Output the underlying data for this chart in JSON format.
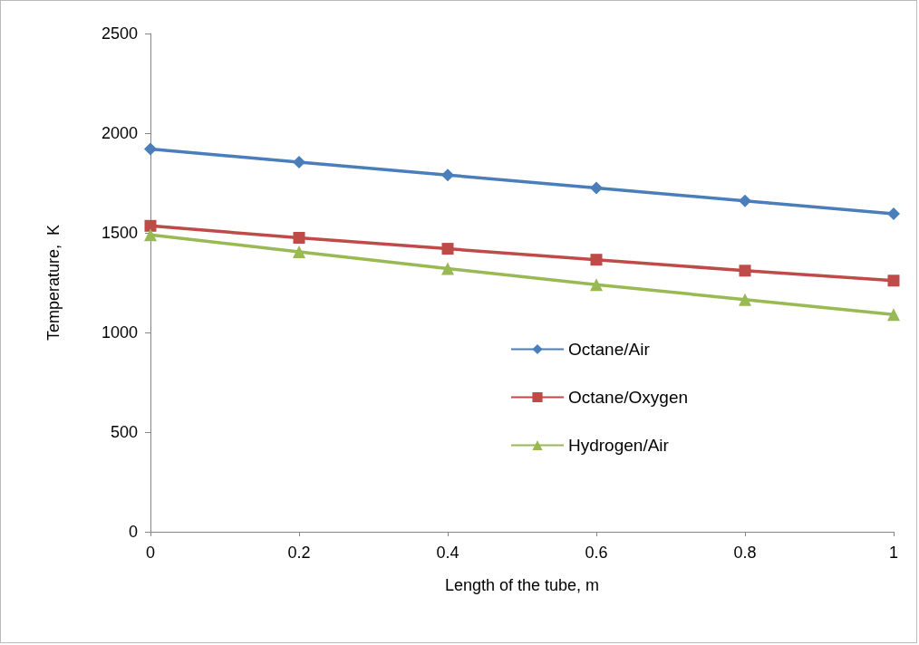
{
  "chart_data": {
    "type": "line",
    "xlabel": "Length of the tube, m",
    "ylabel": "Temperature,  K",
    "x": [
      0,
      0.2,
      0.4,
      0.6,
      0.8,
      1
    ],
    "series": [
      {
        "name": "Octane/Air",
        "color": "#4a7ebb",
        "marker": "diamond",
        "values": [
          1920,
          1855,
          1790,
          1725,
          1660,
          1595
        ]
      },
      {
        "name": "Octane/Oxygen",
        "color": "#be4b48",
        "marker": "square",
        "values": [
          1535,
          1475,
          1420,
          1365,
          1310,
          1260
        ]
      },
      {
        "name": "Hydrogen/Air",
        "color": "#98b954",
        "marker": "triangle",
        "values": [
          1490,
          1405,
          1320,
          1240,
          1165,
          1090
        ]
      }
    ],
    "xlim": [
      0,
      1
    ],
    "xticks": [
      0,
      0.2,
      0.4,
      0.6,
      0.8,
      1
    ],
    "ylim": [
      0,
      2500
    ],
    "yticks": [
      0,
      500,
      1000,
      1500,
      2000,
      2500
    ],
    "grid": false,
    "legend": "center right",
    "line_style": "solid"
  }
}
